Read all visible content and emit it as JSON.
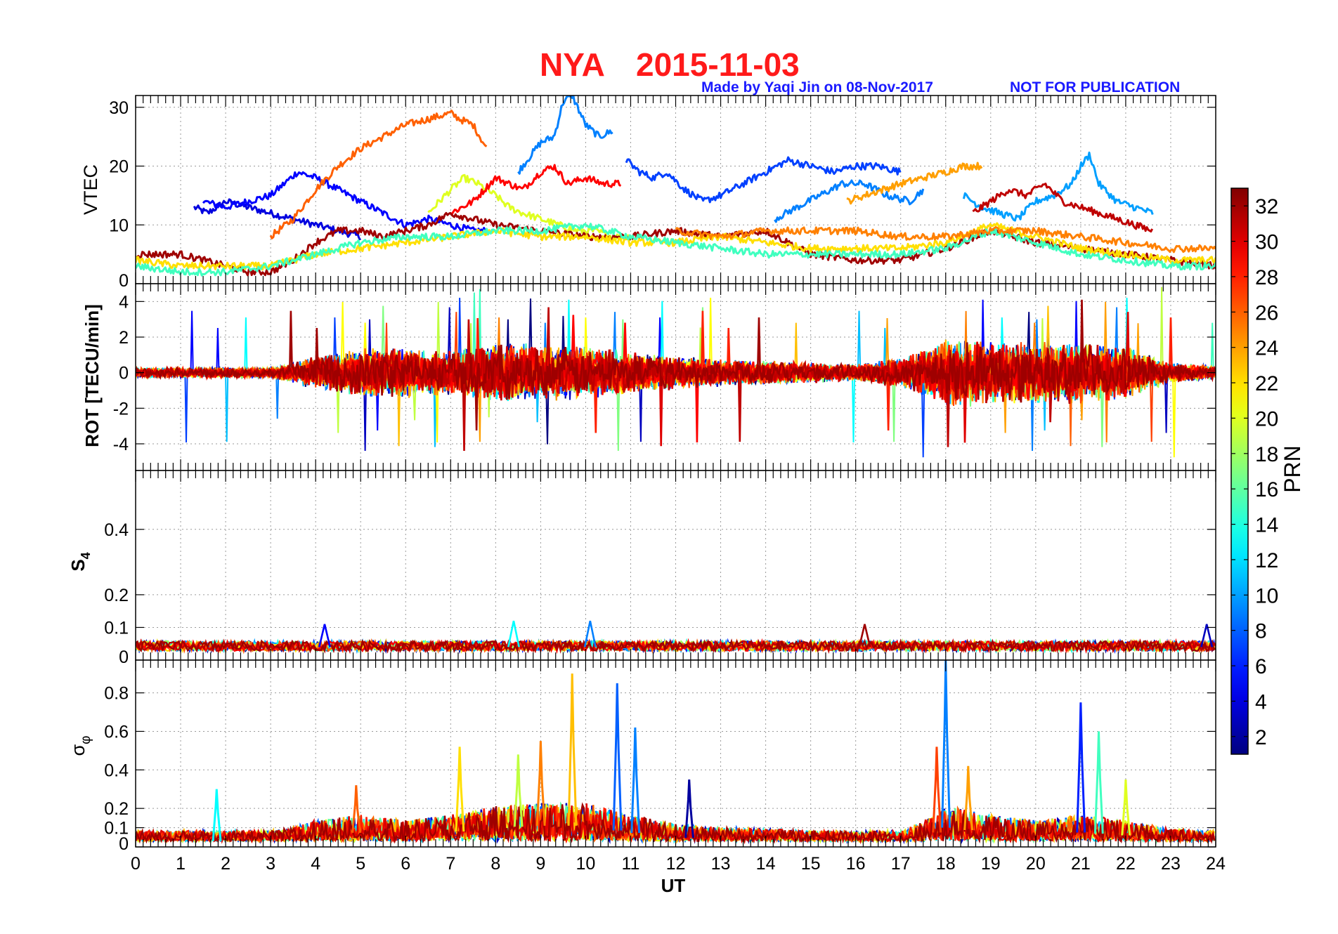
{
  "header": {
    "station": "NYA",
    "date": "2015-11-03",
    "credit": "Made by Yaqi Jin on 08-Nov-2017",
    "notice": "NOT FOR PUBLICATION"
  },
  "colorbar": {
    "label": "PRN",
    "range": [
      1,
      33
    ],
    "ticks": [
      2,
      4,
      6,
      8,
      10,
      12,
      14,
      16,
      18,
      20,
      22,
      24,
      26,
      28,
      30,
      32
    ],
    "colormap": "jet"
  },
  "chart_data": [
    {
      "type": "line",
      "panel": "vtec",
      "ylabel": "VTEC",
      "xlim": [
        0,
        24
      ],
      "ylim": [
        0,
        32
      ],
      "yticks": [
        0,
        10,
        20,
        30
      ],
      "grid": true,
      "series": [
        {
          "prn": 4,
          "x": [
            1.3,
            1.6,
            2.0,
            2.5,
            3.0,
            3.5,
            4.0,
            4.5,
            5.0
          ],
          "y": [
            13,
            12,
            14,
            13,
            12,
            11,
            10,
            9,
            8
          ]
        },
        {
          "prn": 5,
          "x": [
            1.5,
            2.0,
            2.5,
            3.0,
            3.3,
            3.6,
            4.0,
            4.5,
            5.0,
            5.5,
            6.0,
            6.5,
            7.0,
            7.5,
            7.8
          ],
          "y": [
            14,
            13,
            14,
            15,
            17,
            19,
            18,
            16,
            14,
            12,
            10,
            11,
            10,
            9,
            9
          ]
        },
        {
          "prn": 26,
          "x": [
            3.0,
            3.5,
            4.0,
            4.5,
            5.0,
            5.5,
            6.0,
            6.5,
            7.0,
            7.2,
            7.5,
            7.8
          ],
          "y": [
            8,
            11,
            16,
            20,
            23,
            25,
            27,
            28,
            29,
            28,
            27,
            23
          ]
        },
        {
          "prn": 9,
          "x": [
            8.5,
            8.8,
            9.0,
            9.3,
            9.5,
            9.7,
            10.0,
            10.3,
            10.6
          ],
          "y": [
            19,
            22,
            24,
            25,
            31,
            32,
            27,
            25,
            26
          ]
        },
        {
          "prn": 20,
          "x": [
            6.5,
            7.0,
            7.3,
            7.6,
            8.0,
            8.3,
            8.6,
            9.0,
            9.4,
            9.8,
            10.2,
            10.6,
            11.0
          ],
          "y": [
            12,
            16,
            18,
            17,
            15,
            13,
            12,
            11,
            10,
            9,
            9,
            8,
            8
          ]
        },
        {
          "prn": 29,
          "x": [
            7.0,
            7.5,
            8.0,
            8.3,
            8.6,
            9.0,
            9.3,
            9.6,
            10.0,
            10.4,
            10.8
          ],
          "y": [
            12,
            14,
            18,
            17,
            16,
            19,
            20,
            17,
            18,
            17,
            17
          ]
        },
        {
          "prn": 7,
          "x": [
            10.9,
            11.2,
            11.5,
            11.8,
            12.2,
            12.6,
            13.0,
            13.5,
            14.0,
            14.5,
            15.0,
            15.5,
            16.0,
            16.5,
            17.0
          ],
          "y": [
            21,
            19,
            18,
            19,
            16,
            14,
            15,
            17,
            19,
            21,
            20,
            19,
            20,
            20,
            19
          ]
        },
        {
          "prn": 9,
          "x": [
            14.2,
            14.7,
            15.2,
            15.7,
            16.2,
            16.7,
            17.2,
            17.5
          ],
          "y": [
            11,
            13,
            15,
            17,
            17,
            15,
            14,
            16
          ]
        },
        {
          "prn": 24,
          "x": [
            15.8,
            16.2,
            16.6,
            17.0,
            17.5,
            18.0,
            18.4,
            18.8
          ],
          "y": [
            14,
            15,
            16,
            17,
            18,
            19,
            20,
            20
          ]
        },
        {
          "prn": 10,
          "x": [
            18.4,
            18.8,
            19.2,
            19.6,
            20.0,
            20.4,
            20.8,
            21.0,
            21.2,
            21.4,
            21.8,
            22.2,
            22.6
          ],
          "y": [
            15,
            13,
            12,
            11,
            14,
            15,
            17,
            20,
            22,
            17,
            14,
            13,
            12
          ]
        },
        {
          "prn": 31,
          "x": [
            18.6,
            19.0,
            19.4,
            19.8,
            20.2,
            20.6,
            21.0,
            21.4,
            21.8,
            22.2,
            22.6
          ],
          "y": [
            12,
            14,
            16,
            15,
            17,
            14,
            13,
            12,
            11,
            10,
            9
          ]
        },
        {
          "prn": 32,
          "x": [
            0.0,
            0.5,
            1.0,
            1.5,
            2.0,
            2.5,
            3.0,
            3.5,
            4.0,
            4.5,
            5.0,
            5.5,
            6.0,
            6.5,
            7.0,
            7.5,
            8.0,
            9.0,
            10.0,
            11.0,
            12.0,
            13.0,
            14.0,
            15.0,
            16.0,
            17.0,
            18.0,
            19.0,
            20.0,
            21.0,
            22.0,
            23.0,
            24.0
          ],
          "y": [
            5,
            5,
            5,
            4,
            3,
            2,
            2,
            4,
            7,
            9,
            9,
            8,
            9,
            10,
            12,
            11,
            10,
            9,
            8,
            8,
            9,
            8,
            9,
            5,
            4,
            4,
            6,
            9,
            7,
            6,
            5,
            4,
            3
          ]
        },
        {
          "prn": 22,
          "x": [
            0.0,
            1.0,
            2.0,
            3.0,
            4.0,
            5.0,
            6.0,
            7.0,
            8.0,
            9.0,
            10.0,
            11.0,
            12.0,
            13.0,
            14.0,
            15.0,
            16.0,
            17.0,
            18.0,
            19.0,
            20.0,
            21.0,
            22.0,
            23.0,
            24.0
          ],
          "y": [
            4,
            3,
            3,
            3,
            5,
            6,
            7,
            8,
            9,
            8,
            8,
            7,
            7,
            8,
            7,
            6,
            6,
            6,
            7,
            10,
            8,
            6,
            5,
            4,
            4
          ]
        },
        {
          "prn": 15,
          "x": [
            0.0,
            1.0,
            2.0,
            3.0,
            4.0,
            5.0,
            6.0,
            7.0,
            8.0,
            9.0,
            10.0,
            11.0,
            12.0,
            13.0,
            14.0,
            15.0,
            16.0,
            17.0,
            18.0,
            19.0,
            20.0,
            21.0,
            22.0,
            23.0,
            24.0
          ],
          "y": [
            3,
            2,
            2,
            3,
            5,
            7,
            8,
            8,
            9,
            9,
            10,
            8,
            7,
            6,
            5,
            5,
            5,
            5,
            6,
            9,
            7,
            5,
            4,
            3,
            3
          ]
        },
        {
          "prn": 25,
          "x": [
            12.0,
            13.0,
            14.0,
            15.0,
            16.0,
            17.0,
            18.0,
            19.0,
            20.0,
            21.0,
            22.0,
            23.0,
            24.0
          ],
          "y": [
            9,
            8,
            9,
            9,
            9,
            8,
            8,
            9,
            9,
            8,
            7,
            6,
            6
          ]
        }
      ]
    },
    {
      "type": "line",
      "panel": "rot",
      "ylabel": "ROT [TECU/min]",
      "xlim": [
        0,
        24
      ],
      "ylim": [
        -5.5,
        5
      ],
      "yticks": [
        -4,
        -2,
        0,
        2,
        4
      ],
      "grid": true,
      "envelope": {
        "x": [
          0,
          1,
          2,
          3,
          3.5,
          4,
          5,
          6,
          7,
          8,
          9,
          10,
          11,
          12,
          13,
          14,
          15,
          16,
          17,
          17.8,
          18,
          19,
          20,
          21,
          22,
          23,
          24
        ],
        "amplitude": [
          0.3,
          0.3,
          0.3,
          0.3,
          0.6,
          1.0,
          1.4,
          1.5,
          1.3,
          1.8,
          1.6,
          1.6,
          1.2,
          1.0,
          0.8,
          0.7,
          0.6,
          0.5,
          0.9,
          1.7,
          2.0,
          1.9,
          1.8,
          1.8,
          1.6,
          0.6,
          0.4
        ]
      }
    },
    {
      "type": "line",
      "panel": "s4",
      "ylabel": "S4",
      "xlim": [
        0,
        24
      ],
      "ylim": [
        0,
        0.58
      ],
      "yticks": [
        0,
        0.1,
        0.2,
        0.4
      ],
      "grid": true,
      "baseline": 0.04,
      "peaks": [
        {
          "x": 4.2,
          "y": 0.11,
          "prn": 5
        },
        {
          "x": 8.4,
          "y": 0.12,
          "prn": 13
        },
        {
          "x": 10.1,
          "y": 0.12,
          "prn": 9
        },
        {
          "x": 16.2,
          "y": 0.11,
          "prn": 32
        },
        {
          "x": 23.8,
          "y": 0.11,
          "prn": 3
        }
      ]
    },
    {
      "type": "line",
      "panel": "sigma_phi",
      "ylabel": "σφ",
      "xlim": [
        0,
        24
      ],
      "ylim": [
        0,
        0.97
      ],
      "yticks": [
        0,
        0.1,
        0.2,
        0.4,
        0.6,
        0.8
      ],
      "grid": true,
      "xlabel": "UT",
      "xticks": [
        0,
        1,
        2,
        3,
        4,
        5,
        6,
        7,
        8,
        9,
        10,
        11,
        12,
        13,
        14,
        15,
        16,
        17,
        18,
        19,
        20,
        21,
        22,
        23,
        24
      ],
      "baseline": {
        "x": [
          0,
          3,
          3.5,
          4,
          5,
          6,
          7,
          8,
          9,
          10,
          11,
          12,
          13,
          14,
          15,
          16,
          17,
          17.8,
          18,
          19,
          20,
          21,
          22,
          23,
          24
        ],
        "level": [
          0.06,
          0.06,
          0.08,
          0.12,
          0.15,
          0.12,
          0.15,
          0.2,
          0.22,
          0.22,
          0.15,
          0.1,
          0.08,
          0.07,
          0.06,
          0.06,
          0.06,
          0.15,
          0.2,
          0.15,
          0.12,
          0.15,
          0.12,
          0.07,
          0.06
        ]
      },
      "peaks": [
        {
          "x": 1.8,
          "y": 0.3,
          "prn": 13
        },
        {
          "x": 4.9,
          "y": 0.32,
          "prn": 26
        },
        {
          "x": 7.2,
          "y": 0.52,
          "prn": 22
        },
        {
          "x": 8.5,
          "y": 0.48,
          "prn": 19
        },
        {
          "x": 9.0,
          "y": 0.55,
          "prn": 25
        },
        {
          "x": 9.7,
          "y": 0.9,
          "prn": 23
        },
        {
          "x": 10.7,
          "y": 0.85,
          "prn": 8
        },
        {
          "x": 11.1,
          "y": 0.62,
          "prn": 9
        },
        {
          "x": 12.3,
          "y": 0.35,
          "prn": 2
        },
        {
          "x": 17.8,
          "y": 0.52,
          "prn": 27
        },
        {
          "x": 18.0,
          "y": 0.97,
          "prn": 9
        },
        {
          "x": 18.5,
          "y": 0.42,
          "prn": 24
        },
        {
          "x": 21.0,
          "y": 0.75,
          "prn": 6
        },
        {
          "x": 21.4,
          "y": 0.6,
          "prn": 15
        },
        {
          "x": 22.0,
          "y": 0.35,
          "prn": 20
        }
      ]
    }
  ]
}
